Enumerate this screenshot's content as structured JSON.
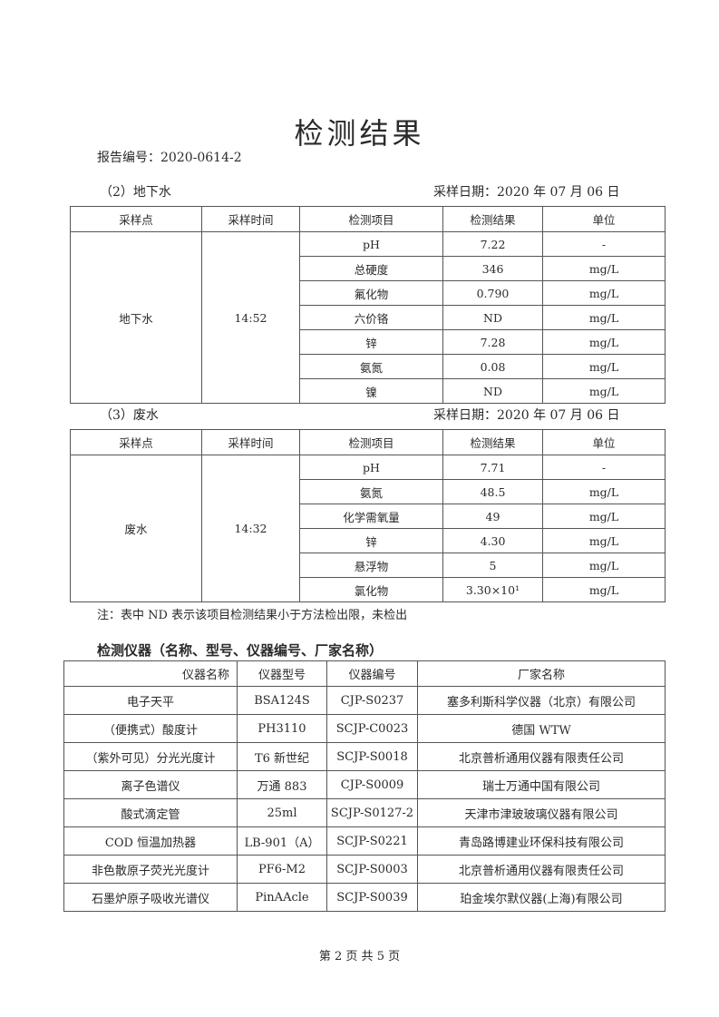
{
  "title": "检测结果",
  "report_no": "报告编号：2020-0614-2",
  "groundwater": {
    "section": "（2）地下水",
    "date": "采样日期：2020 年 07 月 06 日",
    "headers": [
      "采样点",
      "采样时间",
      "检测项目",
      "检测结果",
      "单位"
    ],
    "site": "地下水",
    "time": "14:52",
    "rows": [
      [
        "pH",
        "7.22",
        "-"
      ],
      [
        "总硬度",
        "346",
        "mg/L"
      ],
      [
        "氟化物",
        "0.790",
        "mg/L"
      ],
      [
        "六价铬",
        "ND",
        "mg/L"
      ],
      [
        "锌",
        "7.28",
        "mg/L"
      ],
      [
        "氨氮",
        "0.08",
        "mg/L"
      ],
      [
        "镍",
        "ND",
        "mg/L"
      ]
    ]
  },
  "wastewater": {
    "section": "（3）废水",
    "date": "采样日期：2020 年 07 月 06 日",
    "headers": [
      "采样点",
      "采样时间",
      "检测项目",
      "检测结果",
      "单位"
    ],
    "site": "废水",
    "time": "14:32",
    "rows": [
      [
        "pH",
        "7.71",
        "-"
      ],
      [
        "氨氮",
        "48.5",
        "mg/L"
      ],
      [
        "化学需氧量",
        "49",
        "mg/L"
      ],
      [
        "锌",
        "4.30",
        "mg/L"
      ],
      [
        "悬浮物",
        "5",
        "mg/L"
      ],
      [
        "氯化物",
        "3.30×10¹",
        "mg/L"
      ]
    ]
  },
  "note": "注：表中 ND 表示该项目检测结果小于方法检出限，未检出",
  "instruments": {
    "heading": "检测仪器（名称、型号、仪器编号、厂家名称）",
    "headers": [
      "仪器名称",
      "仪器型号",
      "仪器编号",
      "厂家名称"
    ],
    "rows": [
      [
        "电子天平",
        "BSA124S",
        "CJP-S0237",
        "塞多利斯科学仪器（北京）有限公司"
      ],
      [
        "（便携式）酸度计",
        "PH3110",
        "SCJP-C0023",
        "德国 WTW"
      ],
      [
        "（紫外可见）分光光度计",
        "T6 新世纪",
        "SCJP-S0018",
        "北京普析通用仪器有限责任公司"
      ],
      [
        "离子色谱仪",
        "万通 883",
        "CJP-S0009",
        "瑞士万通中国有限公司"
      ],
      [
        "酸式滴定管",
        "25ml",
        "SCJP-S0127-2",
        "天津市津玻玻璃仪器有限公司"
      ],
      [
        "COD 恒温加热器",
        "LB-901（A）",
        "SCJP-S0221",
        "青岛路博建业环保科技有限公司"
      ],
      [
        "非色散原子荧光光度计",
        "PF6-M2",
        "SCJP-S0003",
        "北京普析通用仪器有限责任公司"
      ],
      [
        "石墨炉原子吸收光谱仪",
        "PinAAcle",
        "SCJP-S0039",
        "珀金埃尔默仪器(上海)有限公司"
      ]
    ]
  },
  "footer": "第 2 页  共 5 页"
}
